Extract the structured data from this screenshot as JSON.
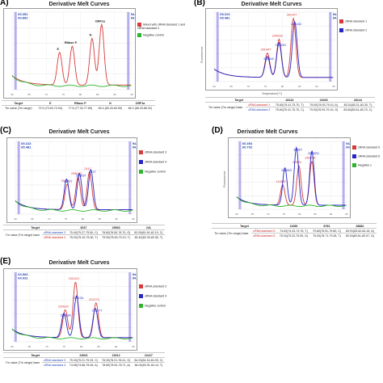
{
  "figure": {
    "panels": [
      {
        "label": "A)",
        "title": "Derivative Melt Curves",
        "tm_left": [
          "60.351",
          "60.892"
        ],
        "tm_right": [
          "94.232",
          "94.573"
        ],
        "legend": [
          {
            "text": "Mixed with cRNA standard 1 and cRNA standard 2",
            "color": "#d63a3a"
          },
          {
            "text": "Negative control",
            "color": "#2cb52c"
          }
        ],
        "table": {
          "header": [
            "Target",
            "E",
            "RNase P",
            "N",
            "ORF1a"
          ],
          "rows": [
            [
              "Tm value (Tm range)",
              "73.9 (73.63-73.94)",
              "77.6 (77.32-77.89)",
              "83.4 (83.43-83.59)",
              "86.2 (86.29-86.32)"
            ]
          ]
        }
      },
      {
        "label": "(B)",
        "title": "Derivative Melt Curves",
        "yaxis": "Fluorescence",
        "xaxis": "Temperature(°C)",
        "tm_left": [
          "65.313",
          "65.481"
        ],
        "tm_right": [
          "94.206",
          "94.575"
        ],
        "legend": [
          {
            "text": "cRNA standard 1",
            "color": "#d63a3a"
          },
          {
            "text": "cRNA standard 2",
            "color": "#2525c8"
          }
        ],
        "table": {
          "header": [
            "Target",
            "28144",
            "23403",
            "28144"
          ],
          "rows": [
            [
              "Tm value (Tm range) base",
              "cRNA standard 1",
              "75.60(75.41-75.70, T)",
              "79.00(78.93-79.10, A)",
              "83.20(83.21-83.30, T)"
            ],
            [
              "",
              "cRNA standard 2",
              "75.60(75.41-75.70, C)",
              "79.00(78.93-79.10, G)",
              "83.60(83.61-83.70, C)"
            ]
          ]
        }
      },
      {
        "label": "(C)",
        "title": "Derivative Melt Curves",
        "tm_left": [
          "65.313",
          "65.481"
        ],
        "tm_right": [
          "94.206",
          "94.575"
        ],
        "legend": [
          {
            "text": "cRNA standard 3",
            "color": "#d63a3a"
          },
          {
            "text": "cRNA standard 4",
            "color": "#2525c8"
          },
          {
            "text": "Negative control",
            "color": "#2cb52c"
          }
        ],
        "table": {
          "header": [
            "Target",
            "3037",
            "25563",
            "241"
          ],
          "rows": [
            [
              "Tm value (Tm range) base",
              "cRNA standard 3",
              "75.40(75.27-75.50, C)",
              "78.60(78.50-78.70, G)",
              "82.00(81.90-82.10, C)"
            ],
            [
              "",
              "cRNA standard 4",
              "75.20(75.10-75.30, T)",
              "79.00(78.90-79.10, T)",
              "82.40(82.30-82.50, T)"
            ]
          ]
        }
      },
      {
        "label": "(D)",
        "title": "Derivative Melt Curves",
        "yaxis": "Fluorescence",
        "tm_left": [
          "60.354",
          "60.702"
        ],
        "tm_right": [
          "94.242",
          "94.575"
        ],
        "legend": [
          {
            "text": "cRNA standard 5",
            "color": "#d63a3a"
          },
          {
            "text": "cRNA standard 6",
            "color": "#2525c8"
          },
          {
            "text": "Negative c",
            "color": "#2cb52c"
          }
        ],
        "table": {
          "header": [
            "Target",
            "11083",
            "8782",
            "28882"
          ],
          "rows": [
            [
              "Tm value (Tm range) base",
              "cRNA standard 5",
              "74.63(74.43-74.76, T)",
              "79.80(78.51-79.80, C)",
              "83.91(83.62-84.18, A)"
            ],
            [
              "",
              "cRNA standard 6",
              "75.34(75.23-75.59, G)",
              "79.00(78.71-79.26, T)",
              "83.94(83.61-83.97, G)"
            ]
          ]
        }
      },
      {
        "label": "(E)",
        "title": "Derivative Melt Curves",
        "tm_left": [
          "63.563",
          "64.031"
        ],
        "tm_right": [
          "94.306",
          "94.575"
        ],
        "legend": [
          {
            "text": "cRNA standard 3",
            "color": "#d63a3a"
          },
          {
            "text": "cRNA standard 4",
            "color": "#2525c8"
          },
          {
            "text": "Negative control",
            "color": "#2cb52c"
          }
        ],
        "table": {
          "header": [
            "Target",
            "23063",
            "23012",
            "22227"
          ],
          "rows": [
            [
              "Tm value (Tm range) base",
              "cRNA standard 3",
              "75.33(75.21-75.39, C)",
              "78.30(78.21-78.41, G)",
              "84.23(84.16-84.39, C)"
            ],
            [
              "",
              "cRNA standard 4",
              "74.96(74.86-75.06, A)",
              "78.60(78.51-78.71, A)",
              "84.04(83.91-84.14, T)"
            ]
          ]
        }
      }
    ]
  },
  "chart_data": [
    {
      "type": "line",
      "title": "Derivative Melt Curves",
      "xlim": [
        60,
        95
      ],
      "series": [
        {
          "name": "Mixed with cRNA standard 1 and cRNA standard 2",
          "color": "#d63a3a",
          "peaks": [
            {
              "tm": 73.9,
              "label": "E",
              "h": 0.42
            },
            {
              "tm": 77.6,
              "label": "RNase P",
              "h": 0.5
            },
            {
              "tm": 83.4,
              "label": "N",
              "h": 0.6
            },
            {
              "tm": 86.2,
              "label": "ORF1a",
              "h": 0.78
            }
          ]
        },
        {
          "name": "Negative control",
          "color": "#2cb52c",
          "peaks": []
        }
      ]
    },
    {
      "type": "line",
      "title": "Derivative Melt Curves",
      "ylabel": "Fluorescence",
      "xlabel": "Temperature(°C)",
      "xlim": [
        60,
        95
      ],
      "series": [
        {
          "name": "cRNA standard 1",
          "color": "#d63a3a",
          "peaks": [
            {
              "tm": 75.6,
              "label": "28144T",
              "h": 0.35
            },
            {
              "tm": 79.0,
              "label": "23403A",
              "h": 0.55
            },
            {
              "tm": 83.2,
              "label": "28144T",
              "h": 0.85
            }
          ]
        },
        {
          "name": "cRNA standard 2",
          "color": "#2525c8",
          "peaks": [
            {
              "tm": 75.6,
              "label": "28144C",
              "h": 0.3
            },
            {
              "tm": 79.0,
              "label": "23403G",
              "h": 0.5
            },
            {
              "tm": 83.6,
              "label": "28144C",
              "h": 0.8
            }
          ]
        }
      ]
    },
    {
      "type": "line",
      "title": "Derivative Melt Curves",
      "xlim": [
        60,
        95
      ],
      "series": [
        {
          "name": "cRNA standard 3",
          "color": "#d63a3a",
          "peaks": [
            {
              "tm": 75.4,
              "label": "3037C",
              "h": 0.35
            },
            {
              "tm": 78.6,
              "label": "25563G",
              "h": 0.45
            },
            {
              "tm": 82.0,
              "label": "241C",
              "h": 0.52
            }
          ]
        },
        {
          "name": "cRNA standard 4",
          "color": "#2525c8",
          "peaks": [
            {
              "tm": 75.2,
              "label": "3037T",
              "h": 0.42
            },
            {
              "tm": 79.0,
              "label": "25563T",
              "h": 0.5
            },
            {
              "tm": 82.4,
              "label": "241T",
              "h": 0.55
            }
          ]
        },
        {
          "name": "Negative control",
          "color": "#2cb52c",
          "peaks": []
        }
      ]
    },
    {
      "type": "line",
      "title": "Derivative Melt Curves",
      "ylabel": "Fluorescence",
      "xlim": [
        60,
        95
      ],
      "series": [
        {
          "name": "cRNA standard 5",
          "color": "#d63a3a",
          "peaks": [
            {
              "tm": 74.63,
              "label": "11083T",
              "h": 0.3
            },
            {
              "tm": 79.8,
              "label": "8782C",
              "h": 0.58
            },
            {
              "tm": 83.91,
              "label": "28882A",
              "h": 0.65
            }
          ]
        },
        {
          "name": "cRNA standard 6",
          "color": "#2525c8",
          "peaks": [
            {
              "tm": 75.34,
              "label": "11083G",
              "h": 0.55
            },
            {
              "tm": 79.0,
              "label": "8782T",
              "h": 0.85
            },
            {
              "tm": 83.94,
              "label": "28882G",
              "h": 0.8
            }
          ]
        },
        {
          "name": "Negative c",
          "color": "#2cb52c",
          "peaks": []
        }
      ]
    },
    {
      "type": "line",
      "title": "Derivative Melt Curves",
      "xlim": [
        60,
        95
      ],
      "series": [
        {
          "name": "cRNA standard 3",
          "color": "#d63a3a",
          "peaks": [
            {
              "tm": 75.33,
              "label": "23063C",
              "h": 0.4
            },
            {
              "tm": 78.3,
              "label": "23012G",
              "h": 0.8
            },
            {
              "tm": 84.23,
              "label": "22227C",
              "h": 0.5
            }
          ]
        },
        {
          "name": "cRNA standard 4",
          "color": "#2525c8",
          "peaks": [
            {
              "tm": 74.96,
              "label": "23063A",
              "h": 0.35
            },
            {
              "tm": 78.6,
              "label": "23012A",
              "h": 0.6
            },
            {
              "tm": 84.04,
              "label": "22227T",
              "h": 0.42
            }
          ]
        },
        {
          "name": "Negative control",
          "color": "#2cb52c",
          "peaks": []
        }
      ]
    }
  ]
}
